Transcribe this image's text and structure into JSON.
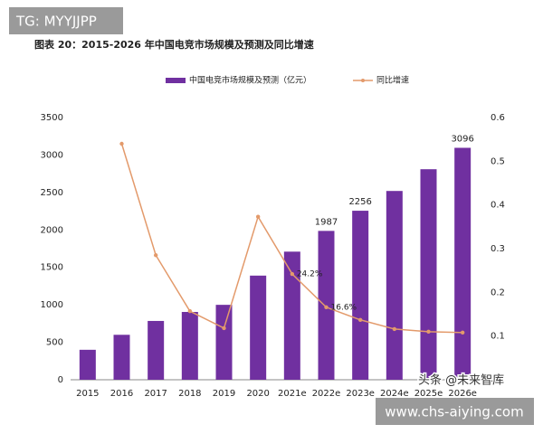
{
  "overlays": {
    "top_tag": "TG: MYYJJPP",
    "source_tag": "头条 @未来智库",
    "url_tag": "www.chs-aiying.com"
  },
  "chart_data": {
    "type": "bar",
    "title": "图表 20：2015-2026 年中国电竞市场规模及预测及同比增速",
    "categories": [
      "2015",
      "2016",
      "2017",
      "2018",
      "2019",
      "2020",
      "2021e",
      "2022e",
      "2023e",
      "2024e",
      "2025e",
      "2026e"
    ],
    "series": [
      {
        "name": "中国电竞市场规模及预测（亿元）",
        "type": "bar",
        "color": "#7030a0",
        "values": [
          400,
          600,
          785,
          905,
          1000,
          1390,
          1710,
          1987,
          2256,
          2520,
          2810,
          3096
        ],
        "value_labels": [
          null,
          null,
          null,
          null,
          null,
          null,
          null,
          "1987",
          "2256",
          null,
          null,
          "3096"
        ]
      },
      {
        "name": "同比增速",
        "type": "line",
        "axis": "y2",
        "color": "#e39a6b",
        "values": [
          null,
          0.54,
          0.285,
          0.157,
          0.118,
          0.373,
          0.242,
          0.166,
          0.137,
          0.116,
          0.11,
          0.108
        ],
        "value_labels": [
          null,
          null,
          null,
          null,
          null,
          null,
          "24.2%",
          "16.6%",
          null,
          null,
          null,
          null
        ]
      }
    ],
    "ylim": [
      0,
      3500
    ],
    "yticks": [
      0,
      500,
      1000,
      1500,
      2000,
      2500,
      3000,
      3500
    ],
    "y2lim": [
      0,
      0.6
    ],
    "y2ticks": [
      0,
      0.1,
      0.2,
      0.3,
      0.4,
      0.5,
      0.6
    ],
    "grid": false,
    "legend": "top"
  }
}
